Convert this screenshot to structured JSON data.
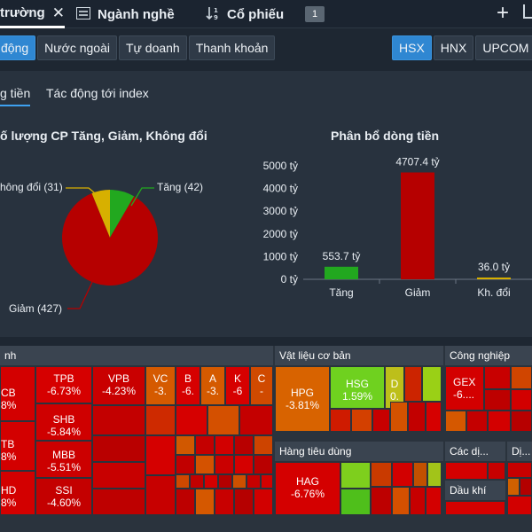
{
  "tabs": {
    "market_label": "trường",
    "industry_label": "Ngành nghề",
    "stock_label": "Cổ phiếu",
    "stock_badge": "1"
  },
  "filters": {
    "impact": "động",
    "foreign": "Nước ngoài",
    "proprietary": "Tự doanh",
    "liquidity": "Thanh khoản"
  },
  "exchanges": [
    "HSX",
    "HNX",
    "UPCOM"
  ],
  "subtabs": {
    "money_flow": "g tiền",
    "index_impact": "Tác động tới index"
  },
  "pie_chart": {
    "title": "ố lượng CP Tăng, Giảm, Không đổi",
    "labels": {
      "up": "Tăng (42)",
      "down": "Giảm (427)",
      "unchanged": "hông đổi (31)"
    }
  },
  "bar_chart": {
    "title": "Phân bổ dòng tiền",
    "value_labels": [
      "553.7 tỷ",
      "4707.4 tỷ",
      "36.0 tỷ"
    ],
    "ytick_labels": [
      "0 tỷ",
      "1000 tỷ",
      "2000 tỷ",
      "3000 tỷ",
      "4000 tỷ",
      "5000 tỷ"
    ]
  },
  "chart_data": [
    {
      "type": "pie",
      "title": "ố lượng CP Tăng, Giảm, Không đổi",
      "categories": [
        "Tăng",
        "Giảm",
        "Không đổi"
      ],
      "values": [
        42,
        427,
        31
      ],
      "colors": [
        "#22a81f",
        "#b60000",
        "#d7b000"
      ]
    },
    {
      "type": "bar",
      "title": "Phân bổ dòng tiền",
      "categories": [
        "Tăng",
        "Giảm",
        "Kh. đổi"
      ],
      "values": [
        553.7,
        4707.4,
        36.0
      ],
      "colors": [
        "#22a81f",
        "#b60000",
        "#d7b000"
      ],
      "ylim": [
        0,
        5000
      ],
      "yticks": [
        0,
        1000,
        2000,
        3000,
        4000,
        5000
      ],
      "unit": "tỷ"
    }
  ],
  "treemap": {
    "sections": {
      "finance": "nh",
      "materials": "Vật liệu cơ bản",
      "industrials": "Công nghiệp",
      "consumer": "Hàng tiêu dùng",
      "services": "Các dị...",
      "utilities": "Dị...",
      "oil_gas": "Dầu khí"
    },
    "stocks": {
      "cb": {
        "ticker": "CB",
        "change": "8%"
      },
      "tb": {
        "ticker": "TB",
        "change": "8%"
      },
      "hd": {
        "ticker": "HD",
        "change": "8%"
      },
      "tpb": {
        "ticker": "TPB",
        "change": "-6.73%"
      },
      "shb": {
        "ticker": "SHB",
        "change": "-5.84%"
      },
      "mbb": {
        "ticker": "MBB",
        "change": "-5.51%"
      },
      "ssi": {
        "ticker": "SSI",
        "change": "-4.60%"
      },
      "vpb": {
        "ticker": "VPB",
        "change": "-4.23%"
      },
      "vc": {
        "ticker": "VC",
        "change": "-3."
      },
      "b": {
        "ticker": "B",
        "change": "-6."
      },
      "a": {
        "ticker": "A",
        "change": "-3."
      },
      "k": {
        "ticker": "K",
        "change": "-6"
      },
      "c": {
        "ticker": "C",
        "change": "-"
      },
      "hpg": {
        "ticker": "HPG",
        "change": "-3.81%"
      },
      "hsg": {
        "ticker": "HSG",
        "change": "1.59%"
      },
      "d": {
        "ticker": "D",
        "change": "0."
      },
      "gex": {
        "ticker": "GEX",
        "change": "-6...."
      },
      "hag": {
        "ticker": "HAG",
        "change": "-6.76%"
      }
    }
  }
}
